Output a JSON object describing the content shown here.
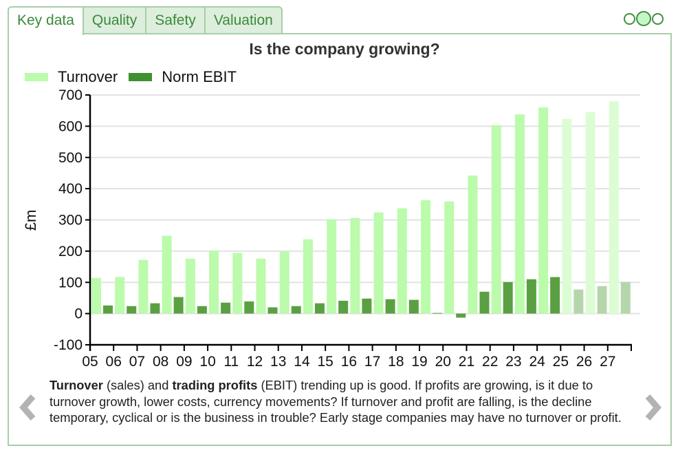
{
  "tabs": [
    {
      "label": "Key data",
      "active": true
    },
    {
      "label": "Quality",
      "active": false
    },
    {
      "label": "Safety",
      "active": false
    },
    {
      "label": "Valuation",
      "active": false
    }
  ],
  "pager": {
    "pages": 3,
    "active_index": 1
  },
  "colors": {
    "turnover": "#bbfbab",
    "turnover_forecast": "#dcfdd4",
    "ebit": "#5aa042",
    "ebit_forecast": "#b5d6ab",
    "legend_ebit": "#3f912f",
    "grid": "#e2e2e2",
    "accent": "#3a8a3a"
  },
  "chart_data": {
    "type": "bar",
    "title": "Is the company growing?",
    "xlabel": "",
    "ylabel": "£m",
    "ylim": [
      -100,
      700
    ],
    "yticks": [
      -100,
      0,
      100,
      200,
      300,
      400,
      500,
      600,
      700
    ],
    "grid": true,
    "legend_position": "top-left",
    "categories": [
      "05",
      "06",
      "07",
      "08",
      "09",
      "10",
      "11",
      "12",
      "13",
      "14",
      "15",
      "16",
      "17",
      "18",
      "19",
      "20",
      "21",
      "22",
      "23",
      "24",
      "25",
      "26",
      "27"
    ],
    "forecast_from_index": 20,
    "series": [
      {
        "name": "Turnover",
        "values": [
          114,
          117,
          172,
          249,
          176,
          202,
          194,
          176,
          198,
          238,
          302,
          306,
          324,
          337,
          363,
          359,
          442,
          603,
          638,
          660,
          623,
          645,
          680
        ]
      },
      {
        "name": "Norm EBIT",
        "values": [
          26,
          24,
          33,
          53,
          24,
          35,
          39,
          20,
          24,
          33,
          41,
          48,
          46,
          44,
          2,
          -13,
          70,
          101,
          110,
          117,
          77,
          88,
          101
        ]
      }
    ]
  },
  "description": {
    "bold1": "Turnover",
    "text1": " (sales) and ",
    "bold2": "trading profits",
    "text2": " (EBIT) trending up is good. If profits are growing, is it due to turnover growth, lower costs, currency movements? If turnover and profit are falling, is the decline temporary, cyclical or is the business in trouble? Early stage companies may have no turnover or profit."
  },
  "nav": {
    "prev_icon": "chevron-left-icon",
    "next_icon": "chevron-right-icon"
  }
}
